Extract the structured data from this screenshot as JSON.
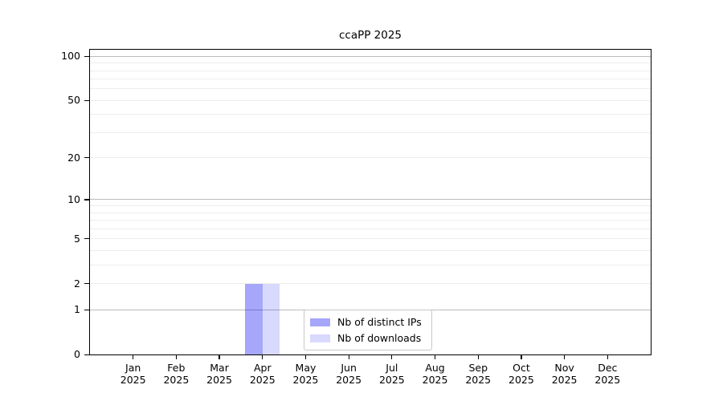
{
  "chart_data": {
    "type": "bar",
    "title": "ccaPP 2025",
    "x_ticks": [
      {
        "month": "Jan",
        "year": "2025"
      },
      {
        "month": "Feb",
        "year": "2025"
      },
      {
        "month": "Mar",
        "year": "2025"
      },
      {
        "month": "Apr",
        "year": "2025"
      },
      {
        "month": "May",
        "year": "2025"
      },
      {
        "month": "Jun",
        "year": "2025"
      },
      {
        "month": "Jul",
        "year": "2025"
      },
      {
        "month": "Aug",
        "year": "2025"
      },
      {
        "month": "Sep",
        "year": "2025"
      },
      {
        "month": "Oct",
        "year": "2025"
      },
      {
        "month": "Nov",
        "year": "2025"
      },
      {
        "month": "Dec",
        "year": "2025"
      }
    ],
    "series": [
      {
        "name": "Nb of distinct IPs",
        "color": "rgba(0,0,240,0.35)",
        "values": [
          0,
          0,
          0,
          2,
          0,
          0,
          0,
          0,
          0,
          0,
          0,
          0
        ]
      },
      {
        "name": "Nb of downloads",
        "color": "rgba(0,0,240,0.15)",
        "values": [
          0,
          0,
          0,
          2,
          0,
          0,
          0,
          0,
          0,
          0,
          0,
          0
        ]
      }
    ],
    "y_axis": {
      "scale": "log1p",
      "min": 0,
      "max": 111,
      "tick_values": [
        0,
        1,
        2,
        5,
        10,
        20,
        50,
        100
      ],
      "major_gridlines": [
        1,
        10,
        100
      ],
      "minor_gridlines": [
        2,
        3,
        4,
        5,
        6,
        7,
        8,
        9,
        20,
        30,
        40,
        50,
        60,
        70,
        80,
        90
      ]
    },
    "legend": {
      "position": "bottom-center",
      "entries": [
        "Nb of distinct IPs",
        "Nb of downloads"
      ]
    },
    "grid": true
  },
  "colors": {
    "axis": "#000000",
    "major_grid": "#bbbbbb",
    "minor_grid": "#ededed",
    "legend_border": "#c9c9c9",
    "background": "#ffffff",
    "text": "#000000"
  }
}
